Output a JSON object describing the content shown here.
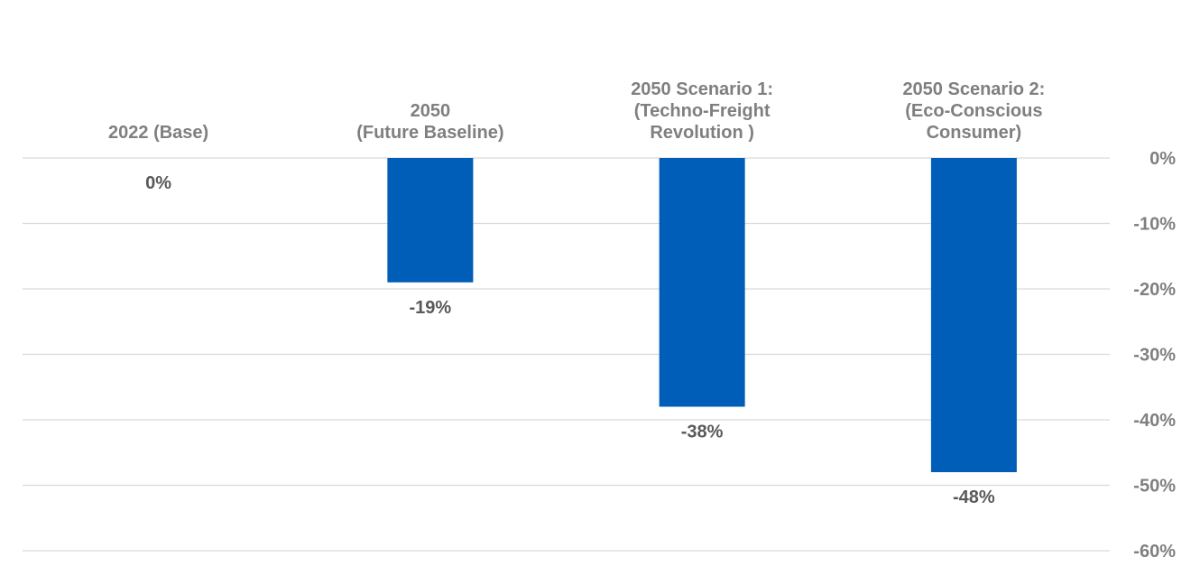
{
  "chart_data": {
    "type": "bar",
    "categories": [
      [
        "2022 (Base)"
      ],
      [
        "2050",
        "(Future Baseline)"
      ],
      [
        "2050 Scenario 1:",
        "(Techno-Freight",
        "Revolution )"
      ],
      [
        "2050 Scenario 2:",
        "(Eco-Conscious",
        "Consumer)"
      ]
    ],
    "values": [
      0,
      -19,
      -38,
      -48
    ],
    "data_labels": [
      "0%",
      "-19%",
      "-38%",
      "-48%"
    ],
    "y_ticks": [
      0,
      -10,
      -20,
      -30,
      -40,
      -50,
      -60
    ],
    "y_tick_labels": [
      "0%",
      "-10%",
      "-20%",
      "-30%",
      "-40%",
      "-50%",
      "-60%"
    ],
    "ylim": [
      -60,
      0
    ],
    "y_axis_position": "right",
    "x_labels_position": "top",
    "grid": true,
    "bar_color": "#005EB8",
    "title": "",
    "xlabel": "",
    "ylabel": ""
  }
}
